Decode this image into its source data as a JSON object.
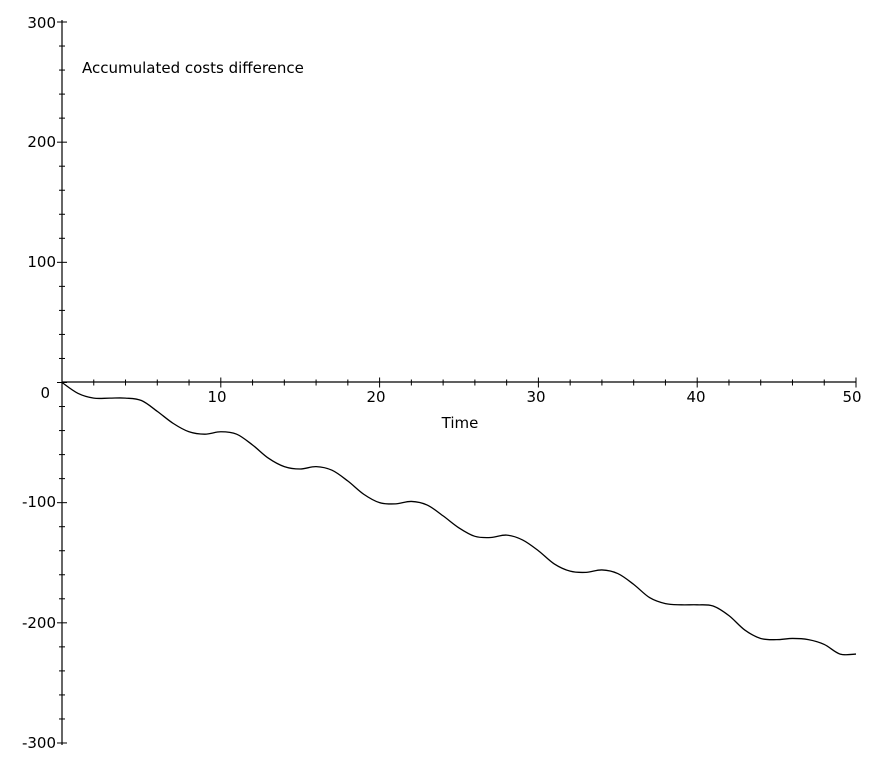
{
  "chart_data": {
    "type": "line",
    "title": "Accumulated costs difference",
    "xlabel": "Time",
    "ylabel": "",
    "xlim": [
      0,
      50
    ],
    "ylim": [
      -300,
      300
    ],
    "x_ticks": [
      10,
      20,
      30,
      40,
      50
    ],
    "x_tick_labels": [
      "10",
      "20",
      "30",
      "40",
      "50"
    ],
    "y_ticks": [
      300,
      200,
      100,
      0,
      -100,
      -200,
      -300
    ],
    "y_tick_labels": [
      "300",
      "200",
      "100",
      "0",
      "-100",
      "-200",
      "-300"
    ],
    "grid": false,
    "series": [
      {
        "x": [
          0,
          1,
          2,
          3,
          4,
          5,
          6,
          7,
          8,
          9,
          10,
          11,
          12,
          13,
          14,
          15,
          16,
          17,
          18,
          19,
          20,
          21,
          22,
          23,
          24,
          25,
          26,
          27,
          28,
          29,
          30,
          31,
          32,
          33,
          34,
          35,
          36,
          37,
          38,
          39,
          40,
          41,
          42,
          43,
          44,
          45,
          46,
          47,
          48,
          49,
          50
        ],
        "y": [
          0,
          -9,
          -13,
          -13,
          -13,
          -15,
          -24,
          -34,
          -41,
          -43,
          -41,
          -43,
          -52,
          -63,
          -70,
          -72,
          -70,
          -73,
          -82,
          -93,
          -100,
          -101,
          -99,
          -102,
          -111,
          -121,
          -128,
          -129,
          -127,
          -131,
          -140,
          -151,
          -157,
          -158,
          -156,
          -159,
          -168,
          -179,
          -184,
          -185,
          -185,
          -186,
          -194,
          -206,
          -213,
          -214,
          -213,
          -214,
          -218,
          -226,
          -226
        ]
      }
    ]
  }
}
